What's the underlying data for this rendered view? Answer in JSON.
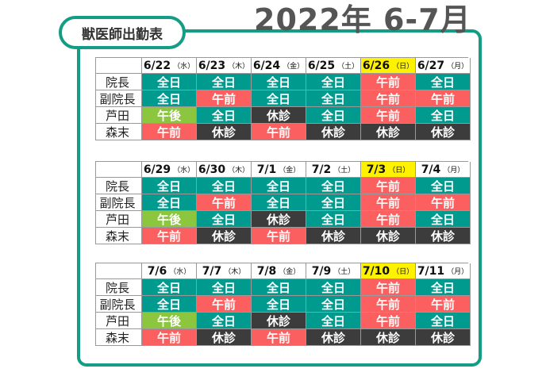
{
  "page": {
    "title": "2022年 6-7月",
    "tag": "獣医師出勤表"
  },
  "colors": {
    "frame": "#159c84",
    "全日": "#009a8f",
    "午前": "#fb5f5f",
    "午後": "#8cc63f",
    "休診": "#3c3c3c",
    "sunday_highlight": "#fff200"
  },
  "rows": [
    "院長",
    "副院長",
    "芦田",
    "森末"
  ],
  "blocks": [
    {
      "days": [
        {
          "date": "6/22",
          "dow": "（水）",
          "sun": false
        },
        {
          "date": "6/23",
          "dow": "（木）",
          "sun": false
        },
        {
          "date": "6/24",
          "dow": "（金）",
          "sun": false
        },
        {
          "date": "6/25",
          "dow": "（土）",
          "sun": false
        },
        {
          "date": "6/26",
          "dow": "（日）",
          "sun": true
        },
        {
          "date": "6/27",
          "dow": "（月）",
          "sun": false
        }
      ],
      "cells": [
        [
          "全日",
          "全日",
          "全日",
          "全日",
          "午前",
          "全日"
        ],
        [
          "全日",
          "午前",
          "全日",
          "全日",
          "午前",
          "午前"
        ],
        [
          "午後",
          "全日",
          "休診",
          "全日",
          "午前",
          "全日"
        ],
        [
          "午前",
          "休診",
          "午前",
          "休診",
          "休診",
          "休診"
        ]
      ]
    },
    {
      "days": [
        {
          "date": "6/29",
          "dow": "（水）",
          "sun": false
        },
        {
          "date": "6/30",
          "dow": "（木）",
          "sun": false
        },
        {
          "date": "7/1",
          "dow": "（金）",
          "sun": false
        },
        {
          "date": "7/2",
          "dow": "（土）",
          "sun": false
        },
        {
          "date": "7/3",
          "dow": "（日）",
          "sun": true
        },
        {
          "date": "7/4",
          "dow": "（月）",
          "sun": false
        }
      ],
      "cells": [
        [
          "全日",
          "全日",
          "全日",
          "全日",
          "午前",
          "全日"
        ],
        [
          "全日",
          "午前",
          "全日",
          "全日",
          "午前",
          "午前"
        ],
        [
          "午後",
          "全日",
          "休診",
          "全日",
          "午前",
          "全日"
        ],
        [
          "午前",
          "休診",
          "午前",
          "休診",
          "休診",
          "休診"
        ]
      ]
    },
    {
      "days": [
        {
          "date": "7/6",
          "dow": "（水）",
          "sun": false
        },
        {
          "date": "7/7",
          "dow": "（木）",
          "sun": false
        },
        {
          "date": "7/8",
          "dow": "（金）",
          "sun": false
        },
        {
          "date": "7/9",
          "dow": "（土）",
          "sun": false
        },
        {
          "date": "7/10",
          "dow": "（日）",
          "sun": true
        },
        {
          "date": "7/11",
          "dow": "（月）",
          "sun": false
        }
      ],
      "cells": [
        [
          "全日",
          "全日",
          "全日",
          "全日",
          "午前",
          "全日"
        ],
        [
          "全日",
          "午前",
          "全日",
          "全日",
          "午前",
          "午前"
        ],
        [
          "午後",
          "全日",
          "休診",
          "全日",
          "午前",
          "全日"
        ],
        [
          "午前",
          "休診",
          "午前",
          "休診",
          "休診",
          "休診"
        ]
      ]
    }
  ]
}
